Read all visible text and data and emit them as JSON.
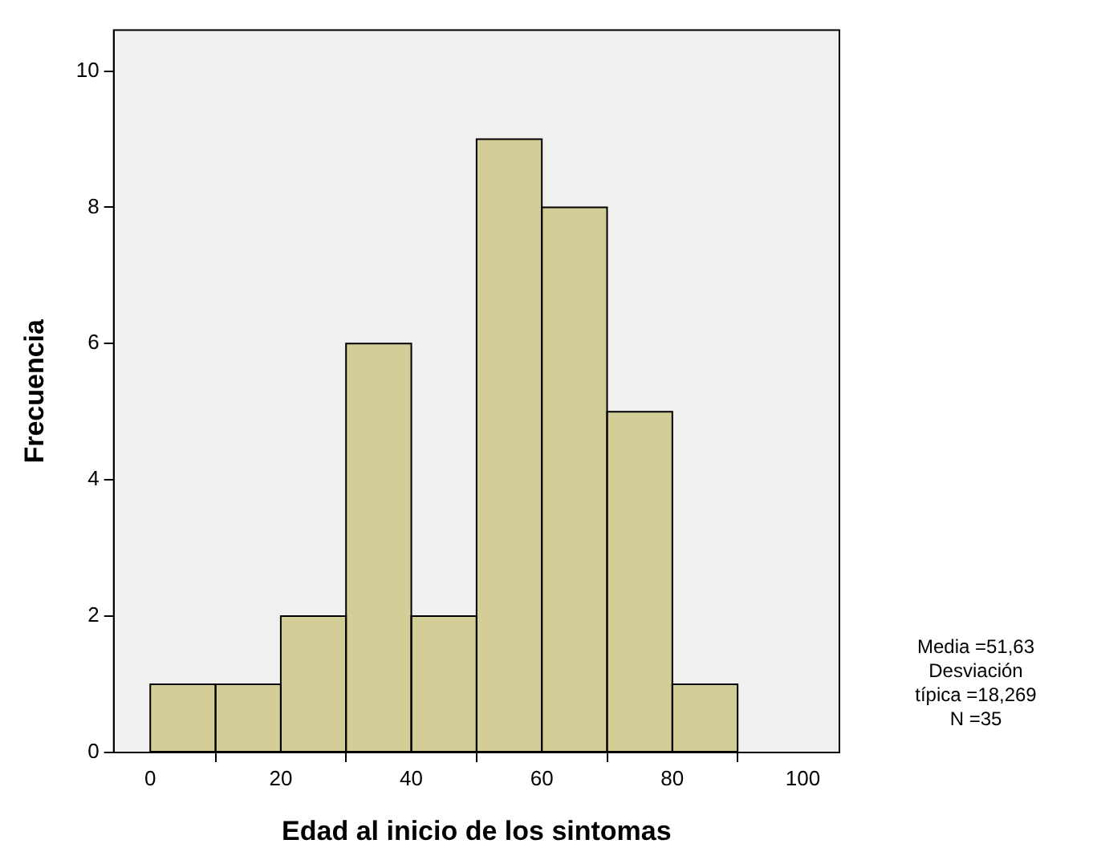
{
  "chart_data": {
    "type": "histogram",
    "xlabel": "Edad al inicio de los sintomas",
    "ylabel": "Frecuencia",
    "bins": [
      0,
      10,
      20,
      30,
      40,
      50,
      60,
      70,
      80,
      90
    ],
    "values": [
      1,
      1,
      2,
      6,
      2,
      9,
      8,
      5,
      1
    ],
    "color": "#d3ce98",
    "xlim": [
      -5.6,
      105.6
    ],
    "xticks": [
      0,
      20,
      40,
      60,
      80,
      100
    ],
    "ylim": [
      0,
      10.6
    ],
    "yticks": [
      0,
      2,
      4,
      6,
      8,
      10
    ],
    "grid": false,
    "legend": false,
    "annotations": [
      "Media =51,63",
      "Desviación típica =18,269",
      "N =35"
    ]
  }
}
